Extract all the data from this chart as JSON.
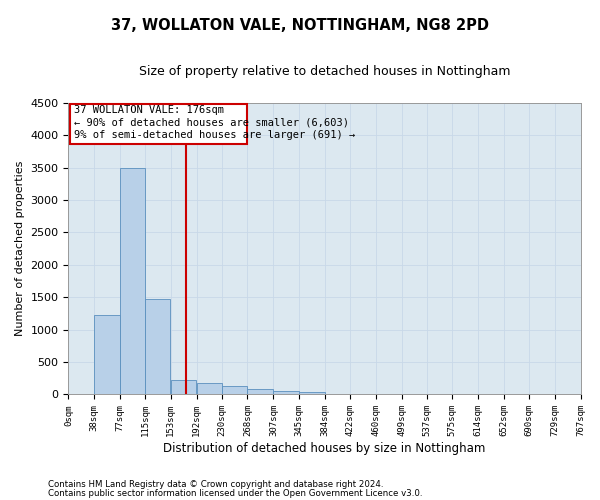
{
  "title1": "37, WOLLATON VALE, NOTTINGHAM, NG8 2PD",
  "title2": "Size of property relative to detached houses in Nottingham",
  "xlabel": "Distribution of detached houses by size in Nottingham",
  "ylabel": "Number of detached properties",
  "property_size": 176,
  "bins": [
    0,
    38,
    77,
    115,
    153,
    192,
    230,
    268,
    307,
    345,
    384,
    422,
    460,
    499,
    537,
    575,
    614,
    652,
    690,
    729,
    767
  ],
  "bar_heights": [
    5,
    1230,
    3500,
    1470,
    220,
    170,
    130,
    90,
    60,
    40,
    10,
    0,
    0,
    0,
    0,
    0,
    5,
    0,
    0,
    0
  ],
  "bar_color": "#b8d0e8",
  "bar_edge_color": "#5a8fbe",
  "vline_color": "#cc0000",
  "vline_x": 176,
  "box_color": "#cc0000",
  "ylim": [
    0,
    4500
  ],
  "yticks": [
    0,
    500,
    1000,
    1500,
    2000,
    2500,
    3000,
    3500,
    4000,
    4500
  ],
  "grid_color": "#c8d8e8",
  "background_color": "#dce8f0",
  "ann_line1": "37 WOLLATON VALE: 176sqm",
  "ann_line2": "← 90% of detached houses are smaller (6,603)",
  "ann_line3": "9% of semi-detached houses are larger (691) →",
  "footer1": "Contains HM Land Registry data © Crown copyright and database right 2024.",
  "footer2": "Contains public sector information licensed under the Open Government Licence v3.0."
}
